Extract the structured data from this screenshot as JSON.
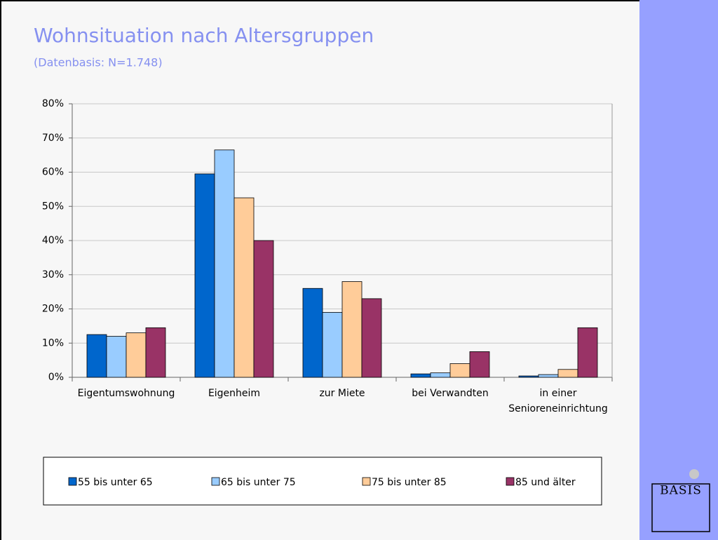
{
  "chart_data": {
    "type": "bar",
    "title": "Wohnsituation nach Altersgruppen",
    "subtitle": "(Datenbasis: N=1.748)",
    "categories": [
      "Eigentumswohnung",
      "Eigenheim",
      "zur Miete",
      "bei Verwandten",
      "in einer Senioreneinrichtung"
    ],
    "series": [
      {
        "name": "55 bis unter 65",
        "color": "#0066cc",
        "values": [
          12.5,
          59.5,
          26,
          1,
          0.4
        ]
      },
      {
        "name": "65 bis unter 75",
        "color": "#99ccff",
        "values": [
          12,
          66.5,
          19,
          1.3,
          0.8
        ]
      },
      {
        "name": "75 bis unter 85",
        "color": "#ffcc99",
        "values": [
          13,
          52.5,
          28,
          4,
          2.3
        ]
      },
      {
        "name": "85 und älter",
        "color": "#993366",
        "values": [
          14.5,
          40,
          23,
          7.5,
          14.5
        ]
      }
    ],
    "ylim": [
      0,
      80
    ],
    "yticks": [
      {
        "value": 0,
        "label": "0%"
      },
      {
        "value": 10,
        "label": "10%"
      },
      {
        "value": 20,
        "label": "20%"
      },
      {
        "value": 30,
        "label": "30%"
      },
      {
        "value": 40,
        "label": "40%"
      },
      {
        "value": 50,
        "label": "50%"
      },
      {
        "value": 60,
        "label": "60%"
      },
      {
        "value": 70,
        "label": "70%"
      },
      {
        "value": 80,
        "label": "80%"
      }
    ],
    "grid": true,
    "legend": "bottom"
  },
  "logo": "BASIS"
}
